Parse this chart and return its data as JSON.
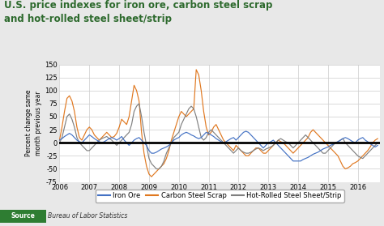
{
  "title": "U.S. price indexes for iron ore, carbon steel scrap\nand hot-rolled steel sheet/strip",
  "ylabel": "Percent change same\nmonth previous year",
  "ylim": [
    -75,
    150
  ],
  "yticks": [
    -75,
    -50,
    -25,
    0,
    25,
    50,
    75,
    100,
    125,
    150
  ],
  "xlim": [
    2006.0,
    2016.75
  ],
  "xticks": [
    2006,
    2007,
    2008,
    2009,
    2010,
    2011,
    2012,
    2013,
    2014,
    2015,
    2016
  ],
  "source_label": "Bureau of Labor Statistics",
  "title_color": "#2d6a2d",
  "source_bg": "#2e7d32",
  "background_color": "#e8e8e8",
  "plot_bg": "#ffffff",
  "iron_ore_color": "#4472c4",
  "scrap_color": "#e07820",
  "hotrolled_color": "#808080",
  "zero_line_color": "#000000",
  "grid_color": "#cccccc",
  "legend_labels": [
    "Iron Ore",
    "Carbon Steel Scrap",
    "Hot-Rolled Steel Sheet/Strip"
  ],
  "iron_ore_x": [
    2006.0,
    2006.083,
    2006.167,
    2006.25,
    2006.333,
    2006.417,
    2006.5,
    2006.583,
    2006.667,
    2006.75,
    2006.833,
    2006.917,
    2007.0,
    2007.083,
    2007.167,
    2007.25,
    2007.333,
    2007.417,
    2007.5,
    2007.583,
    2007.667,
    2007.75,
    2007.833,
    2007.917,
    2008.0,
    2008.083,
    2008.167,
    2008.25,
    2008.333,
    2008.417,
    2008.5,
    2008.583,
    2008.667,
    2008.75,
    2008.833,
    2008.917,
    2009.0,
    2009.083,
    2009.167,
    2009.25,
    2009.333,
    2009.417,
    2009.5,
    2009.583,
    2009.667,
    2009.75,
    2009.833,
    2009.917,
    2010.0,
    2010.083,
    2010.167,
    2010.25,
    2010.333,
    2010.417,
    2010.5,
    2010.583,
    2010.667,
    2010.75,
    2010.833,
    2010.917,
    2011.0,
    2011.083,
    2011.167,
    2011.25,
    2011.333,
    2011.417,
    2011.5,
    2011.583,
    2011.667,
    2011.75,
    2011.833,
    2011.917,
    2012.0,
    2012.083,
    2012.167,
    2012.25,
    2012.333,
    2012.417,
    2012.5,
    2012.583,
    2012.667,
    2012.75,
    2012.833,
    2012.917,
    2013.0,
    2013.083,
    2013.167,
    2013.25,
    2013.333,
    2013.417,
    2013.5,
    2013.583,
    2013.667,
    2013.75,
    2013.833,
    2013.917,
    2014.0,
    2014.083,
    2014.167,
    2014.25,
    2014.333,
    2014.417,
    2014.5,
    2014.583,
    2014.667,
    2014.75,
    2014.833,
    2014.917,
    2015.0,
    2015.083,
    2015.167,
    2015.25,
    2015.333,
    2015.417,
    2015.5,
    2015.583,
    2015.667,
    2015.75,
    2015.833,
    2015.917,
    2016.0,
    2016.083,
    2016.167,
    2016.25,
    2016.333,
    2016.417,
    2016.5,
    2016.583,
    2016.667
  ],
  "iron_ore_y": [
    5,
    8,
    12,
    15,
    18,
    15,
    10,
    5,
    2,
    0,
    5,
    10,
    15,
    12,
    8,
    5,
    2,
    0,
    2,
    5,
    8,
    10,
    8,
    5,
    8,
    12,
    5,
    0,
    -5,
    0,
    5,
    8,
    10,
    5,
    0,
    -5,
    -15,
    -20,
    -20,
    -18,
    -15,
    -12,
    -10,
    -8,
    -5,
    0,
    5,
    8,
    10,
    15,
    18,
    20,
    18,
    15,
    13,
    10,
    8,
    10,
    15,
    20,
    18,
    15,
    12,
    8,
    5,
    2,
    0,
    2,
    5,
    8,
    10,
    5,
    10,
    15,
    20,
    22,
    20,
    15,
    10,
    5,
    0,
    -5,
    -10,
    -5,
    0,
    2,
    5,
    0,
    -5,
    -10,
    -15,
    -20,
    -25,
    -30,
    -35,
    -35,
    -35,
    -35,
    -32,
    -30,
    -28,
    -25,
    -22,
    -20,
    -18,
    -15,
    -12,
    -10,
    -8,
    -5,
    -3,
    0,
    2,
    5,
    8,
    10,
    8,
    5,
    2,
    0,
    5,
    8,
    10,
    5,
    2,
    -2,
    -5,
    -8,
    -5
  ],
  "scrap_x": [
    2006.0,
    2006.083,
    2006.167,
    2006.25,
    2006.333,
    2006.417,
    2006.5,
    2006.583,
    2006.667,
    2006.75,
    2006.833,
    2006.917,
    2007.0,
    2007.083,
    2007.167,
    2007.25,
    2007.333,
    2007.417,
    2007.5,
    2007.583,
    2007.667,
    2007.75,
    2007.833,
    2007.917,
    2008.0,
    2008.083,
    2008.167,
    2008.25,
    2008.333,
    2008.417,
    2008.5,
    2008.583,
    2008.667,
    2008.75,
    2008.833,
    2008.917,
    2009.0,
    2009.083,
    2009.167,
    2009.25,
    2009.333,
    2009.417,
    2009.5,
    2009.583,
    2009.667,
    2009.75,
    2009.833,
    2009.917,
    2010.0,
    2010.083,
    2010.167,
    2010.25,
    2010.333,
    2010.417,
    2010.5,
    2010.583,
    2010.667,
    2010.75,
    2010.833,
    2010.917,
    2011.0,
    2011.083,
    2011.167,
    2011.25,
    2011.333,
    2011.417,
    2011.5,
    2011.583,
    2011.667,
    2011.75,
    2011.833,
    2011.917,
    2012.0,
    2012.083,
    2012.167,
    2012.25,
    2012.333,
    2012.417,
    2012.5,
    2012.583,
    2012.667,
    2012.75,
    2012.833,
    2012.917,
    2013.0,
    2013.083,
    2013.167,
    2013.25,
    2013.333,
    2013.417,
    2013.5,
    2013.583,
    2013.667,
    2013.75,
    2013.833,
    2013.917,
    2014.0,
    2014.083,
    2014.167,
    2014.25,
    2014.333,
    2014.417,
    2014.5,
    2014.583,
    2014.667,
    2014.75,
    2014.833,
    2014.917,
    2015.0,
    2015.083,
    2015.167,
    2015.25,
    2015.333,
    2015.417,
    2015.5,
    2015.583,
    2015.667,
    2015.75,
    2015.833,
    2015.917,
    2016.0,
    2016.083,
    2016.167,
    2016.25,
    2016.333,
    2016.417,
    2016.5,
    2016.583,
    2016.667
  ],
  "scrap_y": [
    5,
    30,
    60,
    85,
    90,
    80,
    60,
    30,
    10,
    5,
    15,
    25,
    30,
    25,
    15,
    10,
    5,
    10,
    15,
    20,
    15,
    10,
    12,
    18,
    30,
    45,
    40,
    35,
    50,
    80,
    110,
    100,
    80,
    20,
    -20,
    -45,
    -60,
    -65,
    -60,
    -55,
    -50,
    -45,
    -40,
    -30,
    -15,
    5,
    20,
    35,
    50,
    60,
    55,
    50,
    55,
    60,
    65,
    140,
    130,
    100,
    60,
    30,
    15,
    20,
    30,
    35,
    25,
    15,
    5,
    0,
    -5,
    -10,
    -15,
    -5,
    -10,
    -15,
    -20,
    -25,
    -25,
    -20,
    -15,
    -10,
    -10,
    -15,
    -20,
    -20,
    -15,
    -10,
    -5,
    0,
    5,
    2,
    0,
    -5,
    -10,
    -15,
    -20,
    -15,
    -10,
    -5,
    0,
    5,
    10,
    20,
    25,
    20,
    15,
    10,
    5,
    0,
    -5,
    -10,
    -15,
    -20,
    -25,
    -35,
    -45,
    -50,
    -48,
    -45,
    -40,
    -38,
    -35,
    -30,
    -25,
    -20,
    -15,
    -8,
    0,
    5,
    8
  ],
  "hotrolled_x": [
    2006.0,
    2006.083,
    2006.167,
    2006.25,
    2006.333,
    2006.417,
    2006.5,
    2006.583,
    2006.667,
    2006.75,
    2006.833,
    2006.917,
    2007.0,
    2007.083,
    2007.167,
    2007.25,
    2007.333,
    2007.417,
    2007.5,
    2007.583,
    2007.667,
    2007.75,
    2007.833,
    2007.917,
    2008.0,
    2008.083,
    2008.167,
    2008.25,
    2008.333,
    2008.417,
    2008.5,
    2008.583,
    2008.667,
    2008.75,
    2008.833,
    2008.917,
    2009.0,
    2009.083,
    2009.167,
    2009.25,
    2009.333,
    2009.417,
    2009.5,
    2009.583,
    2009.667,
    2009.75,
    2009.833,
    2009.917,
    2010.0,
    2010.083,
    2010.167,
    2010.25,
    2010.333,
    2010.417,
    2010.5,
    2010.583,
    2010.667,
    2010.75,
    2010.833,
    2010.917,
    2011.0,
    2011.083,
    2011.167,
    2011.25,
    2011.333,
    2011.417,
    2011.5,
    2011.583,
    2011.667,
    2011.75,
    2011.833,
    2011.917,
    2012.0,
    2012.083,
    2012.167,
    2012.25,
    2012.333,
    2012.417,
    2012.5,
    2012.583,
    2012.667,
    2012.75,
    2012.833,
    2012.917,
    2013.0,
    2013.083,
    2013.167,
    2013.25,
    2013.333,
    2013.417,
    2013.5,
    2013.583,
    2013.667,
    2013.75,
    2013.833,
    2013.917,
    2014.0,
    2014.083,
    2014.167,
    2014.25,
    2014.333,
    2014.417,
    2014.5,
    2014.583,
    2014.667,
    2014.75,
    2014.833,
    2014.917,
    2015.0,
    2015.083,
    2015.167,
    2015.25,
    2015.333,
    2015.417,
    2015.5,
    2015.583,
    2015.667,
    2015.75,
    2015.833,
    2015.917,
    2016.0,
    2016.083,
    2016.167,
    2016.25,
    2016.333,
    2016.417,
    2016.5,
    2016.583,
    2016.667
  ],
  "hotrolled_y": [
    0,
    10,
    30,
    50,
    55,
    45,
    30,
    10,
    0,
    -5,
    -10,
    -15,
    -15,
    -10,
    -5,
    0,
    5,
    8,
    10,
    12,
    8,
    5,
    0,
    -5,
    0,
    5,
    10,
    15,
    20,
    35,
    60,
    70,
    75,
    50,
    20,
    -5,
    -30,
    -40,
    -45,
    -50,
    -50,
    -45,
    -35,
    -20,
    -10,
    0,
    10,
    15,
    20,
    35,
    45,
    55,
    65,
    70,
    65,
    50,
    30,
    10,
    5,
    10,
    20,
    25,
    20,
    15,
    10,
    5,
    0,
    -5,
    -10,
    -15,
    -20,
    -15,
    -10,
    -15,
    -18,
    -20,
    -20,
    -18,
    -15,
    -12,
    -10,
    -12,
    -15,
    -12,
    -10,
    -8,
    -5,
    0,
    5,
    8,
    5,
    2,
    0,
    -5,
    -10,
    -5,
    0,
    5,
    10,
    15,
    10,
    5,
    0,
    -5,
    -10,
    -15,
    -20,
    -20,
    -15,
    -10,
    -5,
    0,
    2,
    5,
    8,
    0,
    -5,
    -10,
    -15,
    -20,
    -25,
    -28,
    -30,
    -25,
    -20,
    -15,
    -10,
    -5,
    0
  ]
}
